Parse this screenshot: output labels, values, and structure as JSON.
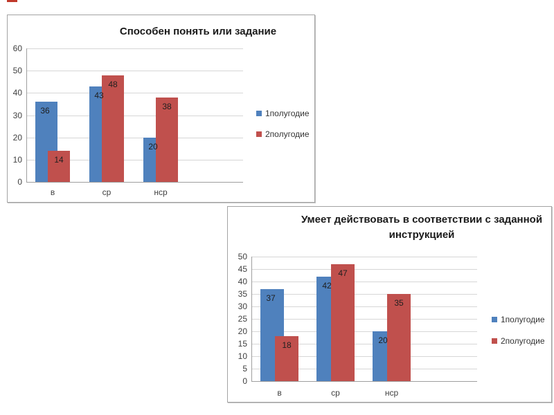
{
  "page": {
    "background": "#ffffff",
    "top_left_mark_color": "#c0392b"
  },
  "colors": {
    "series1": "#4f81bd",
    "series2": "#c0504d",
    "gridline": "#d6d6d6",
    "axis": "#9e9e9e"
  },
  "chart_data": [
    {
      "type": "bar",
      "title": "Способен понять или задание",
      "categories": [
        "в",
        "ср",
        "нср"
      ],
      "series": [
        {
          "name": "1полугодие",
          "color": "#4f81bd",
          "values": [
            36,
            43,
            20
          ]
        },
        {
          "name": "2полугодие",
          "color": "#c0504d",
          "values": [
            14,
            48,
            38
          ]
        }
      ],
      "ylim": [
        0,
        60
      ],
      "ytick_step": 10,
      "ytick_labels": [
        "0",
        "10",
        "20",
        "30",
        "40",
        "50",
        "60"
      ],
      "grid": true,
      "data_labels": true,
      "legend_position": "right"
    },
    {
      "type": "bar",
      "title": "Умеет действовать в соответствии с заданной инструкцией",
      "categories": [
        "в",
        "ср",
        "нср"
      ],
      "series": [
        {
          "name": "1полугодие",
          "color": "#4f81bd",
          "values": [
            37,
            42,
            20
          ]
        },
        {
          "name": "2полугодие",
          "color": "#c0504d",
          "values": [
            18,
            47,
            35
          ]
        }
      ],
      "ylim": [
        0,
        50
      ],
      "ytick_step": 5,
      "ytick_labels": [
        "0",
        "5",
        "10",
        "15",
        "20",
        "25",
        "30",
        "35",
        "40",
        "45",
        "50"
      ],
      "grid": true,
      "data_labels": true,
      "legend_position": "right"
    }
  ]
}
